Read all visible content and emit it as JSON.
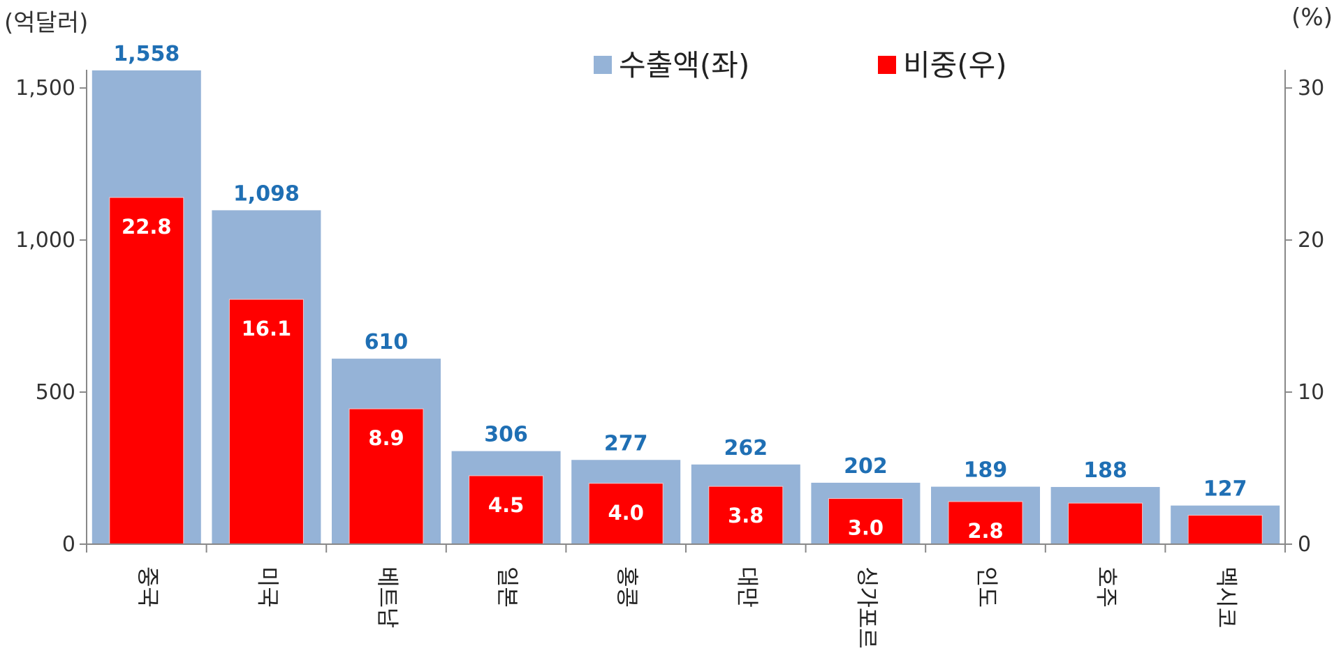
{
  "chart_data": {
    "type": "bar",
    "left_unit": "(억달러)",
    "right_unit": "(%)",
    "categories": [
      "중국",
      "미국",
      "베트남",
      "일본",
      "홍콩",
      "대만",
      "싱가포르",
      "인도",
      "호주",
      "멕시코"
    ],
    "series": [
      {
        "name": "수출액(좌)",
        "axis": "left",
        "color": "#95b3d7",
        "label_color": "#1f6fb4",
        "values": [
          1558,
          1098,
          610,
          306,
          277,
          262,
          202,
          189,
          188,
          127
        ],
        "labels": [
          "1,558",
          "1,098",
          "610",
          "306",
          "277",
          "262",
          "202",
          "189",
          "188",
          "127"
        ]
      },
      {
        "name": "비중(우)",
        "axis": "right",
        "color": "#ff0000",
        "values": [
          22.8,
          16.1,
          8.9,
          4.5,
          4.0,
          3.8,
          3.0,
          2.8,
          2.7,
          1.9
        ],
        "labels": [
          "22.8",
          "16.1",
          "8.9",
          "4.5",
          "4.0",
          "3.8",
          "3.0",
          "2.8",
          "",
          ""
        ]
      }
    ],
    "y_left": {
      "lim": [
        0,
        1560
      ],
      "ticks": [
        0,
        500,
        1000,
        1500
      ],
      "tick_labels": [
        "0",
        "500",
        "1,000",
        "1,500"
      ]
    },
    "y_right": {
      "lim": [
        0,
        31.2
      ],
      "ticks": [
        0,
        10,
        20,
        30
      ],
      "tick_labels": [
        "0",
        "10",
        "20",
        "30"
      ]
    },
    "legend_position": "top-center",
    "grid": false
  }
}
